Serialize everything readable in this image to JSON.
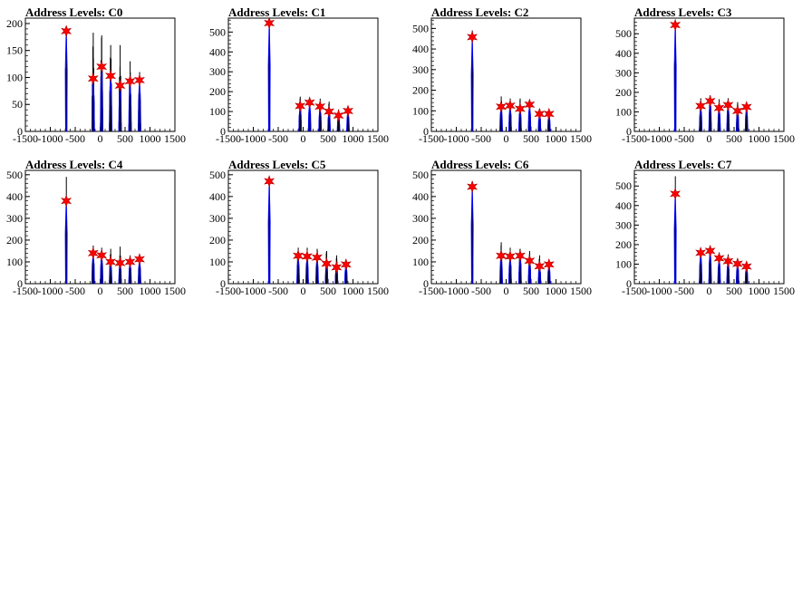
{
  "colors": {
    "background": "#ffffff",
    "histogram": "#000000",
    "fit": "#0000ff",
    "marker": "#ff0000",
    "axis": "#000000"
  },
  "chart_data": [
    {
      "type": "bar",
      "title": "Address Levels: C0",
      "xlim": [
        -1500,
        1500
      ],
      "ylim": [
        0,
        210
      ],
      "xticks": [
        -1500,
        -1000,
        -500,
        0,
        500,
        1000,
        1500
      ],
      "yticks": [
        0,
        50,
        100,
        150,
        200
      ],
      "peaks": [
        {
          "x": -680,
          "y": 186,
          "max": 195
        },
        {
          "x": -140,
          "y": 98,
          "max": 183
        },
        {
          "x": 30,
          "y": 120,
          "max": 178
        },
        {
          "x": 210,
          "y": 103,
          "max": 160
        },
        {
          "x": 400,
          "y": 85,
          "max": 160
        },
        {
          "x": 600,
          "y": 93,
          "max": 130
        },
        {
          "x": 790,
          "y": 95,
          "max": 110
        }
      ]
    },
    {
      "type": "bar",
      "title": "Address Levels: C1",
      "xlim": [
        -1500,
        1500
      ],
      "ylim": [
        0,
        570
      ],
      "xticks": [
        -1500,
        -1000,
        -500,
        0,
        500,
        1000,
        1500
      ],
      "yticks": [
        0,
        100,
        200,
        300,
        400,
        500
      ],
      "peaks": [
        {
          "x": -680,
          "y": 545,
          "max": 550
        },
        {
          "x": -60,
          "y": 128,
          "max": 175
        },
        {
          "x": 130,
          "y": 145,
          "max": 165
        },
        {
          "x": 340,
          "y": 125,
          "max": 165
        },
        {
          "x": 520,
          "y": 100,
          "max": 150
        },
        {
          "x": 710,
          "y": 80,
          "max": 110
        },
        {
          "x": 900,
          "y": 103,
          "max": 110
        }
      ]
    },
    {
      "type": "bar",
      "title": "Address Levels: C2",
      "xlim": [
        -1500,
        1500
      ],
      "ylim": [
        0,
        550
      ],
      "xticks": [
        -1500,
        -1000,
        -500,
        0,
        500,
        1000,
        1500
      ],
      "yticks": [
        0,
        100,
        200,
        300,
        400,
        500
      ],
      "peaks": [
        {
          "x": -680,
          "y": 458,
          "max": 490
        },
        {
          "x": -100,
          "y": 120,
          "max": 170
        },
        {
          "x": 80,
          "y": 125,
          "max": 160
        },
        {
          "x": 280,
          "y": 110,
          "max": 160
        },
        {
          "x": 470,
          "y": 130,
          "max": 150
        },
        {
          "x": 670,
          "y": 85,
          "max": 110
        },
        {
          "x": 860,
          "y": 85,
          "max": 100
        }
      ]
    },
    {
      "type": "bar",
      "title": "Address Levels: C3",
      "xlim": [
        -1500,
        1500
      ],
      "ylim": [
        0,
        580
      ],
      "xticks": [
        -1500,
        -1000,
        -500,
        0,
        500,
        1000,
        1500
      ],
      "yticks": [
        0,
        100,
        200,
        300,
        400,
        500
      ],
      "peaks": [
        {
          "x": -680,
          "y": 545,
          "max": 545
        },
        {
          "x": -170,
          "y": 130,
          "max": 170
        },
        {
          "x": 20,
          "y": 155,
          "max": 185
        },
        {
          "x": 200,
          "y": 120,
          "max": 165
        },
        {
          "x": 380,
          "y": 135,
          "max": 170
        },
        {
          "x": 570,
          "y": 105,
          "max": 150
        },
        {
          "x": 750,
          "y": 125,
          "max": 140
        }
      ]
    },
    {
      "type": "bar",
      "title": "Address Levels: C4",
      "xlim": [
        -1500,
        1500
      ],
      "ylim": [
        0,
        520
      ],
      "xticks": [
        -1500,
        -1000,
        -500,
        0,
        500,
        1000,
        1500
      ],
      "yticks": [
        0,
        100,
        200,
        300,
        400,
        500
      ],
      "peaks": [
        {
          "x": -680,
          "y": 380,
          "max": 490
        },
        {
          "x": -140,
          "y": 140,
          "max": 175
        },
        {
          "x": 30,
          "y": 130,
          "max": 165
        },
        {
          "x": 210,
          "y": 100,
          "max": 160
        },
        {
          "x": 400,
          "y": 95,
          "max": 170
        },
        {
          "x": 600,
          "y": 100,
          "max": 130
        },
        {
          "x": 790,
          "y": 112,
          "max": 120
        }
      ]
    },
    {
      "type": "bar",
      "title": "Address Levels: C5",
      "xlim": [
        -1500,
        1500
      ],
      "ylim": [
        0,
        520
      ],
      "xticks": [
        -1500,
        -1000,
        -500,
        0,
        500,
        1000,
        1500
      ],
      "yticks": [
        0,
        100,
        200,
        300,
        400,
        500
      ],
      "peaks": [
        {
          "x": -680,
          "y": 470,
          "max": 470
        },
        {
          "x": -100,
          "y": 128,
          "max": 165
        },
        {
          "x": 80,
          "y": 125,
          "max": 165
        },
        {
          "x": 280,
          "y": 120,
          "max": 160
        },
        {
          "x": 470,
          "y": 92,
          "max": 150
        },
        {
          "x": 670,
          "y": 75,
          "max": 130
        },
        {
          "x": 860,
          "y": 88,
          "max": 100
        }
      ]
    },
    {
      "type": "bar",
      "title": "Address Levels: C6",
      "xlim": [
        -1500,
        1500
      ],
      "ylim": [
        0,
        520
      ],
      "xticks": [
        -1500,
        -1000,
        -500,
        0,
        500,
        1000,
        1500
      ],
      "yticks": [
        0,
        100,
        200,
        300,
        400,
        500
      ],
      "peaks": [
        {
          "x": -680,
          "y": 445,
          "max": 470
        },
        {
          "x": -100,
          "y": 128,
          "max": 190
        },
        {
          "x": 80,
          "y": 125,
          "max": 165
        },
        {
          "x": 280,
          "y": 128,
          "max": 160
        },
        {
          "x": 470,
          "y": 105,
          "max": 150
        },
        {
          "x": 670,
          "y": 80,
          "max": 130
        },
        {
          "x": 860,
          "y": 88,
          "max": 100
        }
      ]
    },
    {
      "type": "bar",
      "title": "Address Levels: C7",
      "xlim": [
        -1500,
        1500
      ],
      "ylim": [
        0,
        580
      ],
      "xticks": [
        -1500,
        -1000,
        -500,
        0,
        500,
        1000,
        1500
      ],
      "yticks": [
        0,
        100,
        200,
        300,
        400,
        500
      ],
      "peaks": [
        {
          "x": -680,
          "y": 460,
          "max": 550
        },
        {
          "x": -170,
          "y": 158,
          "max": 170
        },
        {
          "x": 20,
          "y": 168,
          "max": 185
        },
        {
          "x": 200,
          "y": 130,
          "max": 160
        },
        {
          "x": 380,
          "y": 115,
          "max": 150
        },
        {
          "x": 570,
          "y": 102,
          "max": 130
        },
        {
          "x": 750,
          "y": 88,
          "max": 110
        }
      ]
    }
  ]
}
